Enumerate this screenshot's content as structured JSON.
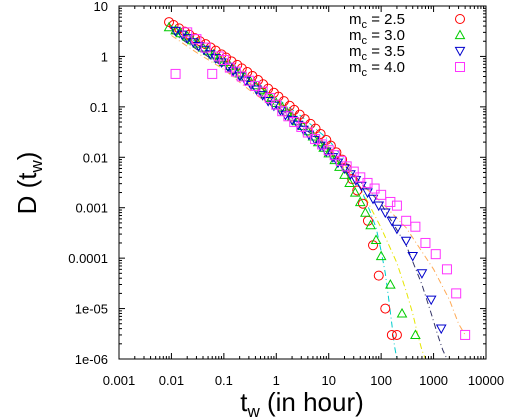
{
  "chart_data": {
    "type": "scatter",
    "x_scale": "log",
    "y_scale": "log",
    "xlim": [
      0.001,
      10000
    ],
    "ylim": [
      1e-06,
      10
    ],
    "grid": false,
    "legend_position": "top-right",
    "xlabel": {
      "main": "t",
      "sub": "w",
      "rest": " (in hour)"
    },
    "ylabel": {
      "main": "D (t",
      "sub": "w",
      "rest": ")"
    },
    "x_ticks": [
      {
        "value": 0.001,
        "label": "0.001"
      },
      {
        "value": 0.01,
        "label": "0.01"
      },
      {
        "value": 0.1,
        "label": "0.1"
      },
      {
        "value": 1,
        "label": "1"
      },
      {
        "value": 10,
        "label": "10"
      },
      {
        "value": 100,
        "label": "100"
      },
      {
        "value": 1000,
        "label": "1000"
      },
      {
        "value": 10000,
        "label": "10000"
      }
    ],
    "y_ticks": [
      {
        "value": 10,
        "label": "10"
      },
      {
        "value": 1,
        "label": "1"
      },
      {
        "value": 0.1,
        "label": "0.1"
      },
      {
        "value": 0.01,
        "label": "0.01"
      },
      {
        "value": 0.001,
        "label": "0.001"
      },
      {
        "value": 0.0001,
        "label": "0.0001"
      },
      {
        "value": 1e-05,
        "label": "1e-05"
      },
      {
        "value": 1e-06,
        "label": "1e-06"
      }
    ],
    "series": [
      {
        "name": "m_c = 2.5",
        "legend": {
          "main": "m",
          "sub": "c",
          "rest": " = 2.5"
        },
        "marker": "circle",
        "color": "#ff0000",
        "x": [
          0.009,
          0.011,
          0.014,
          0.018,
          0.022,
          0.028,
          0.035,
          0.045,
          0.056,
          0.07,
          0.09,
          0.11,
          0.14,
          0.18,
          0.22,
          0.28,
          0.35,
          0.45,
          0.56,
          0.7,
          0.9,
          1.1,
          1.4,
          1.8,
          2.2,
          2.8,
          3.5,
          4.5,
          5.6,
          7,
          9,
          11,
          14,
          18,
          22,
          28,
          35,
          45,
          56,
          70,
          90,
          120,
          160,
          200
        ],
        "y": [
          4.8,
          4.2,
          3.6,
          3.1,
          2.7,
          2.3,
          2.0,
          1.75,
          1.5,
          1.3,
          1.1,
          0.95,
          0.8,
          0.68,
          0.58,
          0.49,
          0.41,
          0.34,
          0.28,
          0.23,
          0.19,
          0.16,
          0.13,
          0.105,
          0.087,
          0.07,
          0.057,
          0.046,
          0.037,
          0.029,
          0.022,
          0.017,
          0.0125,
          0.009,
          0.006,
          0.0037,
          0.0022,
          0.0012,
          0.00055,
          0.00018,
          4.5e-05,
          1e-05,
          3e-06,
          3e-06
        ],
        "fit": {
          "color": "#00cccc",
          "x": [
            0.01,
            0.03,
            0.1,
            0.3,
            1,
            3,
            10,
            20,
            40,
            60,
            80,
            100,
            120,
            140,
            160,
            180,
            200
          ],
          "y": [
            4.0,
            1.9,
            0.8,
            0.35,
            0.15,
            0.065,
            0.022,
            0.009,
            0.0025,
            0.0009,
            0.0004,
            0.00014,
            5e-05,
            1.5e-05,
            5e-06,
            1.8e-06,
            1e-06
          ]
        }
      },
      {
        "name": "m_c = 3.0",
        "legend": {
          "main": "m",
          "sub": "c",
          "rest": " = 3.0"
        },
        "marker": "triangle-up",
        "color": "#00cc00",
        "x": [
          0.009,
          0.012,
          0.015,
          0.02,
          0.025,
          0.032,
          0.04,
          0.05,
          0.063,
          0.08,
          0.1,
          0.13,
          0.16,
          0.2,
          0.25,
          0.32,
          0.4,
          0.5,
          0.63,
          0.8,
          1,
          1.3,
          1.6,
          2,
          2.5,
          3.2,
          4,
          5,
          6.3,
          8,
          10,
          13,
          16,
          20,
          25,
          32,
          40,
          50,
          63,
          80,
          100,
          150,
          250,
          450
        ],
        "y": [
          3.8,
          3.3,
          2.9,
          2.5,
          2.1,
          1.8,
          1.5,
          1.3,
          1.1,
          0.92,
          0.78,
          0.65,
          0.55,
          0.46,
          0.39,
          0.32,
          0.27,
          0.22,
          0.18,
          0.15,
          0.12,
          0.098,
          0.08,
          0.064,
          0.052,
          0.042,
          0.033,
          0.026,
          0.02,
          0.0155,
          0.012,
          0.0088,
          0.0065,
          0.0045,
          0.0031,
          0.002,
          0.0013,
          0.0008,
          0.00045,
          0.00023,
          0.00011,
          3e-05,
          8e-06,
          3e-06
        ],
        "fit": {
          "color": "#e6e600",
          "x": [
            0.01,
            0.03,
            0.1,
            0.3,
            1,
            3,
            10,
            30,
            100,
            200,
            300,
            400,
            500,
            600,
            700
          ],
          "y": [
            3.5,
            1.6,
            0.7,
            0.3,
            0.12,
            0.05,
            0.016,
            0.0045,
            0.0004,
            8e-05,
            2.2e-05,
            8e-06,
            3e-06,
            1.5e-06,
            1e-06
          ]
        }
      },
      {
        "name": "m_c = 3.5",
        "legend": {
          "main": "m",
          "sub": "c",
          "rest": " = 3.5"
        },
        "marker": "triangle-down",
        "color": "#0000cc",
        "x": [
          0.012,
          0.016,
          0.02,
          0.026,
          0.033,
          0.042,
          0.055,
          0.07,
          0.09,
          0.12,
          0.15,
          0.2,
          0.26,
          0.33,
          0.42,
          0.55,
          0.7,
          0.9,
          1.2,
          1.5,
          2,
          2.6,
          3.3,
          4.2,
          5.5,
          7,
          9,
          12,
          15,
          20,
          26,
          33,
          42,
          55,
          70,
          90,
          120,
          160,
          200,
          300,
          400,
          600,
          900,
          1400
        ],
        "y": [
          3.2,
          2.7,
          2.3,
          1.9,
          1.6,
          1.35,
          1.1,
          0.92,
          0.76,
          0.62,
          0.51,
          0.41,
          0.33,
          0.27,
          0.22,
          0.17,
          0.13,
          0.105,
          0.085,
          0.069,
          0.055,
          0.044,
          0.035,
          0.028,
          0.022,
          0.017,
          0.013,
          0.01,
          0.0078,
          0.006,
          0.0046,
          0.0035,
          0.0027,
          0.002,
          0.0015,
          0.0011,
          0.0008,
          0.00055,
          0.00038,
          0.00022,
          0.00011,
          5e-05,
          1.5e-05,
          4e-06
        ],
        "fit": {
          "color": "#333366",
          "x": [
            0.01,
            0.03,
            0.1,
            0.3,
            1,
            3,
            10,
            30,
            100,
            300,
            600,
            900,
            1200,
            1500,
            1800
          ],
          "y": [
            3.0,
            1.4,
            0.62,
            0.26,
            0.105,
            0.043,
            0.014,
            0.0045,
            0.0012,
            0.00018,
            3e-05,
            8e-06,
            3e-06,
            1.5e-06,
            1e-06
          ]
        }
      },
      {
        "name": "m_c = 4.0",
        "legend": {
          "main": "m",
          "sub": "c",
          "rest": " = 4.0"
        },
        "marker": "square",
        "color": "#ff33ff",
        "x": [
          0.012,
          0.02,
          0.03,
          0.045,
          0.06,
          0.08,
          0.1,
          0.13,
          0.17,
          0.22,
          0.3,
          0.4,
          0.55,
          0.75,
          1,
          1.3,
          1.7,
          2.2,
          3,
          4,
          5.5,
          7.5,
          10,
          13,
          17,
          22,
          30,
          40,
          55,
          75,
          100,
          150,
          200,
          300,
          450,
          700,
          1100,
          1800,
          2700,
          4000
        ],
        "y": [
          0.45,
          3.0,
          2.2,
          1.5,
          0.45,
          1.0,
          0.85,
          0.6,
          0.5,
          0.4,
          0.33,
          0.26,
          0.2,
          0.15,
          0.11,
          0.082,
          0.065,
          0.05,
          0.04,
          0.031,
          0.023,
          0.018,
          0.0138,
          0.011,
          0.0085,
          0.0066,
          0.0052,
          0.004,
          0.0031,
          0.0024,
          0.0018,
          0.0013,
          0.0011,
          0.00055,
          0.00042,
          0.0002,
          0.00012,
          6e-05,
          2e-05,
          3e-06
        ],
        "fit": {
          "color": "#ffaa55",
          "x": [
            0.01,
            0.03,
            0.1,
            0.3,
            1,
            3,
            10,
            30,
            100,
            300,
            1000,
            2000,
            3000,
            4000
          ],
          "y": [
            2.6,
            1.2,
            0.55,
            0.22,
            0.09,
            0.036,
            0.012,
            0.004,
            0.0013,
            0.0004,
            6e-05,
            1.5e-05,
            5e-06,
            3e-06
          ]
        }
      }
    ]
  }
}
